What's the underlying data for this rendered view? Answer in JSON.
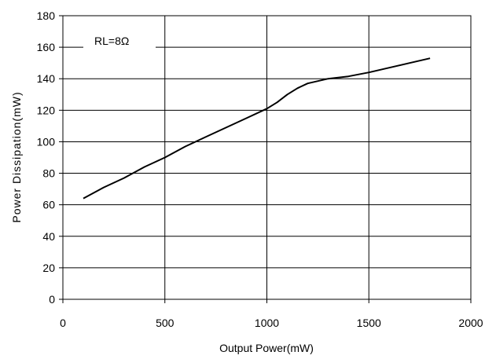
{
  "chart_data": {
    "type": "line",
    "title": "",
    "xlabel": "Output Power(mW)",
    "ylabel": "Power Dissipation(mW)",
    "xlim": [
      0,
      2000
    ],
    "ylim": [
      0,
      180
    ],
    "x_ticks": [
      0,
      500,
      1000,
      1500,
      2000
    ],
    "y_ticks": [
      0,
      20,
      40,
      60,
      80,
      100,
      120,
      140,
      160,
      180
    ],
    "x_tick_labels": [
      "0",
      "500",
      "1000",
      "1500",
      "2000"
    ],
    "y_tick_labels": [
      "0",
      "20",
      "40",
      "60",
      "80",
      "100",
      "120",
      "140",
      "160",
      "180"
    ],
    "grid": true,
    "annotation": "RL=8Ω",
    "line_color": "#000000",
    "series": [
      {
        "x": [
          100,
          200,
          300,
          400,
          500,
          600,
          700,
          800,
          900,
          1000,
          1050,
          1100,
          1150,
          1200,
          1250,
          1300,
          1400,
          1500,
          1600,
          1700,
          1800
        ],
        "y": [
          64,
          71,
          77,
          84,
          90,
          97,
          103,
          109,
          115,
          121,
          125,
          130,
          134,
          137,
          138.5,
          140,
          141.5,
          144,
          147,
          150,
          153
        ]
      }
    ]
  }
}
